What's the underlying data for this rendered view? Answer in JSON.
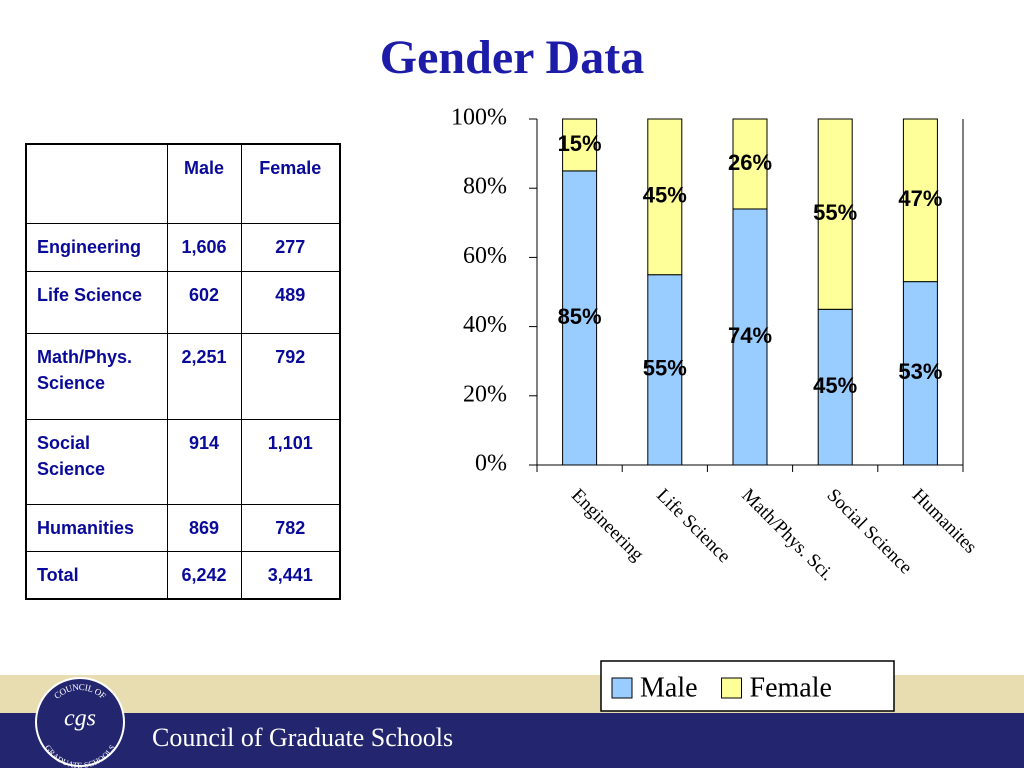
{
  "title": "Gender Data",
  "table": {
    "header": [
      "",
      "Male",
      "Female"
    ],
    "rows": [
      [
        "Engineering",
        "1,606",
        "277"
      ],
      [
        "Life Science",
        "602",
        "489"
      ],
      [
        "Math/Phys. Science",
        "2,251",
        "792"
      ],
      [
        "Social Science",
        "914",
        "1,101"
      ],
      [
        "Humanities",
        "869",
        "782"
      ],
      [
        "Total",
        "6,242",
        "3,441"
      ]
    ]
  },
  "chart_data": {
    "type": "stacked_bar",
    "categories": [
      "Engineering",
      "Life Science",
      "Math/Phys. Sci.",
      "Social Science",
      "Humanites"
    ],
    "series": [
      {
        "name": "Male",
        "color": "#99ccff",
        "values": [
          85,
          55,
          74,
          45,
          53
        ],
        "value_labels": [
          "85%",
          "55%",
          "74%",
          "45%",
          "53%"
        ]
      },
      {
        "name": "Female",
        "color": "#ffff99",
        "values": [
          15,
          45,
          26,
          55,
          47
        ],
        "value_labels": [
          "15%",
          "45%",
          "26%",
          "55%",
          "47%"
        ]
      }
    ],
    "ylim": [
      0,
      100
    ],
    "yticks": [
      {
        "value": 0,
        "label": "0%"
      },
      {
        "value": 20,
        "label": "20%"
      },
      {
        "value": 40,
        "label": "40%"
      },
      {
        "value": 60,
        "label": "60%"
      },
      {
        "value": 80,
        "label": "80%"
      },
      {
        "value": 100,
        "label": "100%"
      }
    ],
    "legend": "bottom-right"
  },
  "footer": {
    "org": "Council of Graduate Schools",
    "logo_top": "COUNCIL OF",
    "logo_mark": "cgs",
    "logo_bottom": "GRADUATE SCHOOLS"
  }
}
